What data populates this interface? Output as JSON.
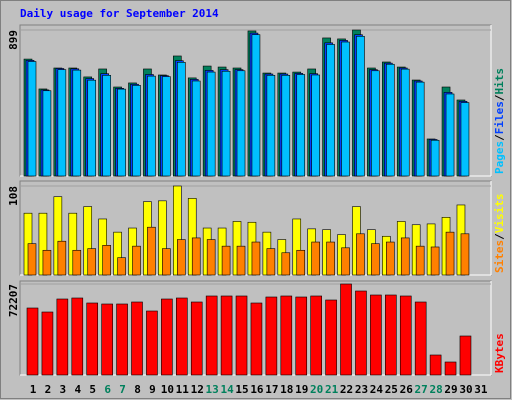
{
  "chart_data": {
    "type": "bar",
    "title": "Daily usage for September 2014",
    "categories": [
      "1",
      "2",
      "3",
      "4",
      "5",
      "6",
      "7",
      "8",
      "9",
      "10",
      "11",
      "12",
      "13",
      "14",
      "15",
      "16",
      "17",
      "18",
      "19",
      "20",
      "21",
      "22",
      "23",
      "24",
      "25",
      "26",
      "27",
      "28",
      "29",
      "30",
      "31"
    ],
    "weekend_categories": [
      "6",
      "7",
      "13",
      "14",
      "20",
      "21",
      "27",
      "28"
    ],
    "weekday_color": "#000000",
    "weekend_color": "#00805c",
    "legend_separator": "/",
    "panels": [
      {
        "ylim": [
          0,
          899
        ],
        "yticks": [
          899
        ],
        "series": [
          {
            "name": "Hits",
            "color": "#00805c",
            "values": [
              720,
              536,
              665,
              665,
              610,
              659,
              548,
              573,
              659,
              622,
              739,
              604,
              677,
              671,
              665,
              893,
              634,
              634,
              640,
              659,
              850,
              844,
              899,
              665,
              702,
              671,
              591,
              228,
              548,
              468,
              null
            ]
          },
          {
            "name": "Files",
            "color": "#0040ff",
            "values": [
              712,
              530,
              662,
              660,
              600,
              630,
              540,
              565,
              625,
              618,
              710,
              595,
              650,
              655,
              655,
              880,
              628,
              628,
              632,
              630,
              820,
              835,
              870,
              655,
              695,
              665,
              585,
              225,
              515,
              460,
              null
            ]
          },
          {
            "name": "Pages",
            "color": "#00c0ff",
            "values": [
              705,
              525,
              655,
              652,
              590,
              620,
              535,
              558,
              615,
              612,
              700,
              585,
              640,
              645,
              648,
              870,
              620,
              620,
              625,
              622,
              810,
              825,
              860,
              648,
              688,
              658,
              578,
              220,
              505,
              452,
              null
            ]
          }
        ]
      },
      {
        "ylim": [
          0,
          108
        ],
        "yticks": [
          108
        ],
        "series": [
          {
            "name": "Visits",
            "color": "#ffff00",
            "values": [
              75,
              75,
              95,
              75,
              83,
              68,
              52,
              57,
              89,
              90,
              108,
              93,
              57,
              57,
              65,
              64,
              52,
              43,
              68,
              56,
              55,
              49,
              83,
              55,
              47,
              65,
              61,
              62,
              70,
              85,
              null
            ]
          },
          {
            "name": "Sites",
            "color": "#ff8000",
            "values": [
              38,
              30,
              41,
              30,
              32,
              36,
              21,
              35,
              58,
              32,
              43,
              45,
              43,
              35,
              35,
              40,
              32,
              27,
              30,
              40,
              40,
              33,
              50,
              38,
              40,
              45,
              35,
              34,
              52,
              50,
              null
            ]
          }
        ]
      },
      {
        "ylim": [
          0,
          72207
        ],
        "yticks": [
          72207
        ],
        "series": [
          {
            "name": "KBytes",
            "color": "#ff0000",
            "values": [
              53159,
              49985,
              60300,
              61100,
              57130,
              56340,
              56340,
              57925,
              50780,
              60300,
              61100,
              57925,
              62690,
              62690,
              62690,
              57130,
              61890,
              62690,
              61890,
              62690,
              59510,
              72207,
              66650,
              63480,
              63480,
              62690,
              57925,
              15870,
              10315,
              30945,
              null
            ]
          }
        ]
      }
    ]
  }
}
